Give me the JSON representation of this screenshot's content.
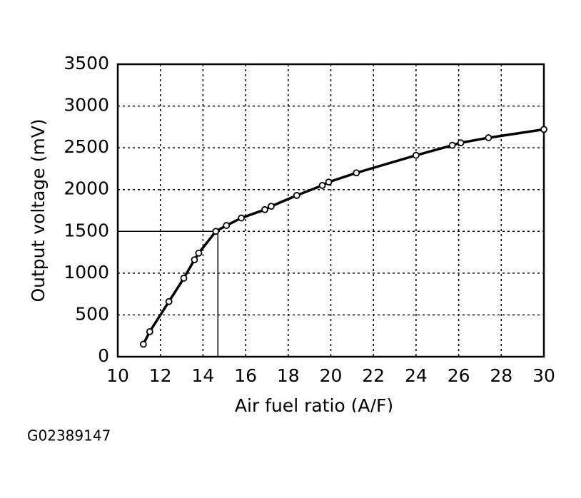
{
  "chart_data": {
    "type": "line",
    "xlabel": "Air fuel ratio (A/F)",
    "ylabel": "Output voltage (mV)",
    "figure_id": "G02389147",
    "x": [
      11.2,
      11.5,
      12.4,
      13.1,
      13.6,
      13.8,
      14.6,
      15.1,
      15.8,
      16.9,
      17.2,
      18.4,
      19.6,
      19.9,
      21.2,
      24.0,
      25.7,
      26.1,
      27.4,
      30
    ],
    "series": [
      {
        "color": "#000000",
        "values": [
          150,
          300,
          660,
          940,
          1160,
          1240,
          1500,
          1570,
          1660,
          1760,
          1800,
          1930,
          2050,
          2090,
          2200,
          2410,
          2530,
          2560,
          2620,
          2720
        ]
      }
    ],
    "reference": {
      "x": 14.7,
      "y": 1500
    },
    "xlim": [
      10,
      30
    ],
    "xticks": [
      10,
      12,
      14,
      16,
      18,
      20,
      22,
      24,
      26,
      28,
      30
    ],
    "ylim": [
      0,
      3500
    ],
    "yticks": [
      0,
      500,
      1000,
      1500,
      2000,
      2500,
      3000,
      3500
    ],
    "grid": true
  }
}
